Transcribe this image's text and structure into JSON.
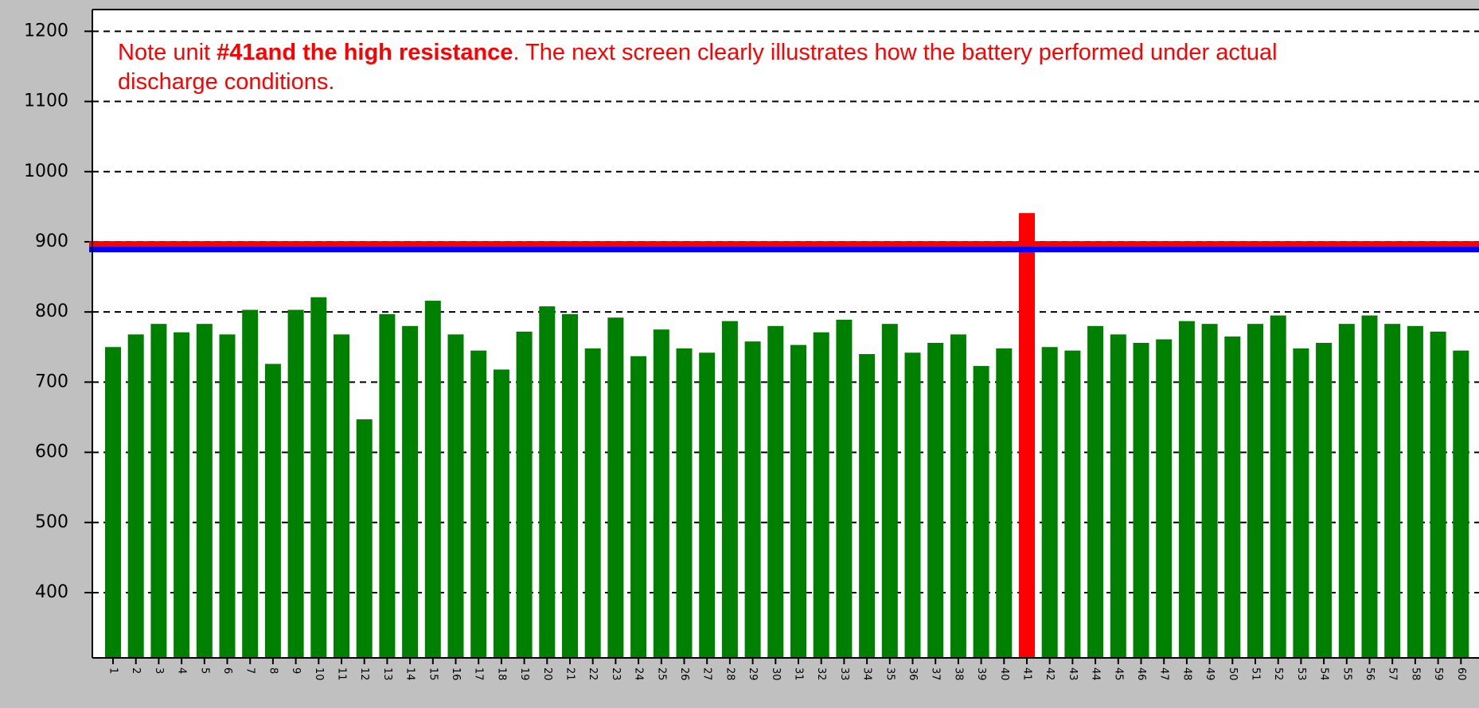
{
  "chart_data": {
    "type": "bar",
    "annotation": [
      "Note unit ",
      "#41and the high resistance",
      ". The next screen clearly illustrates how the battery performed under actual",
      "discharge conditions."
    ],
    "categories": [
      "1",
      "2",
      "3",
      "4",
      "5",
      "6",
      "7",
      "8",
      "9",
      "10",
      "11",
      "12",
      "13",
      "14",
      "15",
      "16",
      "17",
      "18",
      "19",
      "20",
      "21",
      "22",
      "23",
      "24",
      "25",
      "26",
      "27",
      "28",
      "29",
      "30",
      "31",
      "32",
      "33",
      "34",
      "35",
      "36",
      "37",
      "38",
      "39",
      "40",
      "41",
      "42",
      "43",
      "44",
      "45",
      "46",
      "47",
      "48",
      "49",
      "50",
      "51",
      "52",
      "53",
      "54",
      "55",
      "56",
      "57",
      "58",
      "59",
      "60"
    ],
    "values": [
      750,
      768,
      783,
      771,
      783,
      768,
      803,
      726,
      803,
      821,
      768,
      647,
      797,
      780,
      816,
      768,
      745,
      718,
      772,
      808,
      797,
      748,
      792,
      737,
      775,
      748,
      742,
      787,
      758,
      780,
      753,
      771,
      789,
      740,
      783,
      742,
      756,
      768,
      723,
      748,
      941,
      750,
      745,
      780,
      768,
      756,
      761,
      787,
      783,
      765,
      783,
      795,
      748,
      756,
      783,
      795,
      783,
      780,
      772,
      745
    ],
    "colors": [
      "#008000",
      "#008000",
      "#008000",
      "#008000",
      "#008000",
      "#008000",
      "#008000",
      "#008000",
      "#008000",
      "#008000",
      "#008000",
      "#008000",
      "#008000",
      "#008000",
      "#008000",
      "#008000",
      "#008000",
      "#008000",
      "#008000",
      "#008000",
      "#008000",
      "#008000",
      "#008000",
      "#008000",
      "#008000",
      "#008000",
      "#008000",
      "#008000",
      "#008000",
      "#008000",
      "#008000",
      "#008000",
      "#008000",
      "#008000",
      "#008000",
      "#008000",
      "#008000",
      "#008000",
      "#008000",
      "#008000",
      "#ff0000",
      "#008000",
      "#008000",
      "#008000",
      "#008000",
      "#008000",
      "#008000",
      "#008000",
      "#008000",
      "#008000",
      "#008000",
      "#008000",
      "#008000",
      "#008000",
      "#008000",
      "#008000",
      "#008000",
      "#008000",
      "#008000",
      "#008000"
    ],
    "reference_lines": [
      {
        "value": 897,
        "color": "#ff0000"
      },
      {
        "value": 889,
        "color": "#0000ff"
      }
    ],
    "ylim": [
      307,
      1231
    ],
    "yticks": [
      400,
      500,
      600,
      700,
      800,
      900,
      1000,
      1100,
      1200
    ],
    "grid": true
  }
}
